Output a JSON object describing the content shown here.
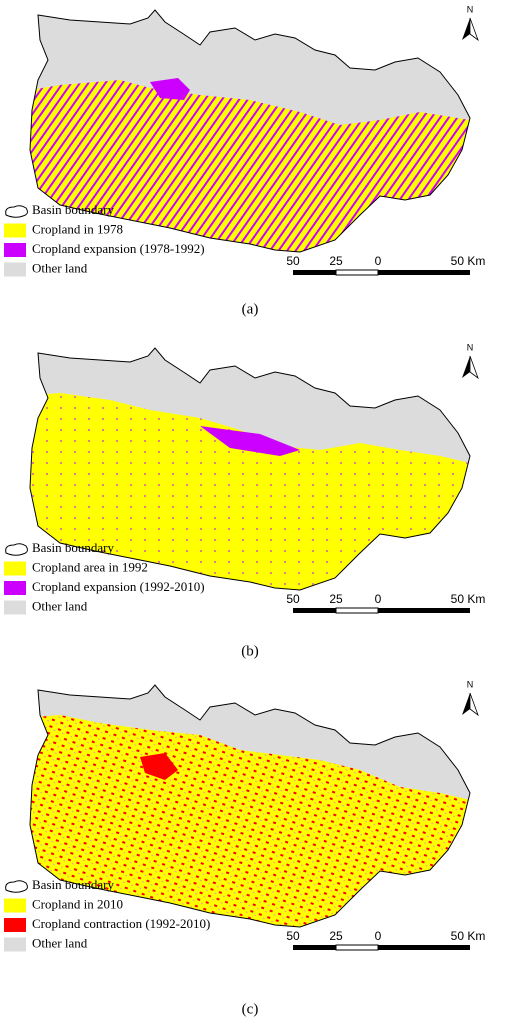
{
  "panels": [
    {
      "label": "(a)",
      "north": "N",
      "legend": [
        "Basin boundary",
        "Cropland in 1978",
        "Cropland expansion (1978-1992)",
        "Other land"
      ],
      "scale": [
        "50",
        "25",
        "0",
        "50 Km"
      ]
    },
    {
      "label": "(b)",
      "north": "N",
      "legend": [
        "Basin boundary",
        "Cropland area in 1992",
        "Cropland expansion (1992-2010)",
        "Other land"
      ],
      "scale": [
        "50",
        "25",
        "0",
        "50 Km"
      ]
    },
    {
      "label": "(c)",
      "north": "N",
      "legend": [
        "Basin boundary",
        "Cropland in 2010",
        "Cropland contraction (1992-2010)",
        "Other land"
      ],
      "scale": [
        "50",
        "25",
        "0",
        "50 Km"
      ]
    }
  ]
}
